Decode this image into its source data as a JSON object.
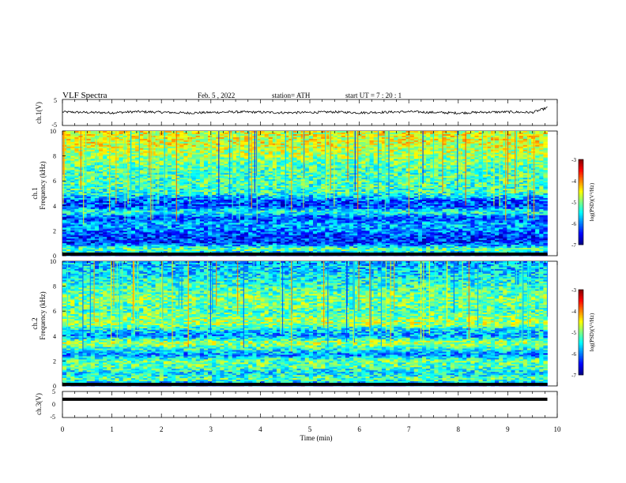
{
  "header": {
    "title": "VLF  Spectra",
    "date": "Feb. 5  , 2022",
    "station": "station= ATH",
    "start_ut": "start  UT  =   7  : 20 : 1"
  },
  "chart_data": [
    {
      "type": "line",
      "panel": "ch1-waveform",
      "ylabel": "ch.1(V)",
      "ylim": [
        -5,
        5
      ],
      "yticks": [
        "5",
        "-5"
      ],
      "xlim": [
        0,
        10
      ],
      "series": [
        {
          "values": [
            0.2,
            0.0,
            -0.1,
            0.3,
            0.1,
            -0.2,
            0.0,
            0.2,
            0.1,
            -0.1,
            0.0,
            0.2,
            -0.1,
            0.1,
            0.3,
            0.0,
            -0.2,
            0.1,
            0.2,
            0.0,
            1.8
          ]
        }
      ],
      "x": [
        0,
        0.5,
        1,
        1.5,
        2,
        2.5,
        3,
        3.5,
        4,
        4.5,
        5,
        5.5,
        6,
        6.5,
        7,
        7.5,
        8,
        8.5,
        9,
        9.5,
        9.8
      ]
    },
    {
      "type": "heatmap",
      "panel": "ch1-spectrogram",
      "ylabel_lines": [
        "ch.1",
        "Frequency  (kHz)"
      ],
      "ylim": [
        0,
        10
      ],
      "yticks": [
        "0",
        "2",
        "4",
        "6",
        "8",
        "10"
      ],
      "xlim": [
        0,
        9.8
      ],
      "colorbar": {
        "label": "log(PSD)(V²/Hz)",
        "range": [
          -7,
          -3
        ],
        "ticks": [
          "-3",
          "-4",
          "-5",
          "-6",
          "-7"
        ]
      },
      "profile_khz": [
        0,
        0.5,
        1,
        1.5,
        2,
        2.5,
        3,
        3.5,
        4,
        4.5,
        5,
        6,
        7,
        8,
        9,
        10
      ],
      "profile_log_psd": [
        -6.6,
        -5.0,
        -6.3,
        -6.3,
        -6.0,
        -5.8,
        -6.3,
        -5.3,
        -6.3,
        -6.1,
        -5.3,
        -5.2,
        -5.2,
        -4.9,
        -4.6,
        -4.6
      ]
    },
    {
      "type": "heatmap",
      "panel": "ch2-spectrogram",
      "ylabel_lines": [
        "ch.2",
        "Frequency  (kHz)"
      ],
      "ylim": [
        0,
        10
      ],
      "yticks": [
        "0",
        "2",
        "4",
        "6",
        "8",
        "10"
      ],
      "xlim": [
        0,
        9.8
      ],
      "colorbar": {
        "label": "log(PSD)(V²/Hz)",
        "range": [
          -7,
          -3
        ],
        "ticks": [
          "-3",
          "-4",
          "-5",
          "-6",
          "-7"
        ]
      },
      "profile_khz": [
        0,
        0.5,
        1,
        1.5,
        2,
        2.5,
        3,
        3.5,
        4,
        4.5,
        5,
        6,
        7,
        8,
        9,
        10
      ],
      "profile_log_psd": [
        -6.6,
        -5.1,
        -5.6,
        -5.2,
        -5.1,
        -6.0,
        -5.3,
        -4.8,
        -5.9,
        -5.6,
        -4.8,
        -5.2,
        -5.0,
        -5.3,
        -5.6,
        -5.8
      ]
    },
    {
      "type": "line",
      "panel": "ch3-waveform",
      "ylabel": "ch.3(V)",
      "ylim": [
        -5,
        5
      ],
      "yticks": [
        "5",
        "0",
        "-5"
      ],
      "xlim": [
        0,
        10
      ],
      "xlabel": "Time  (min)",
      "xticks": [
        "0",
        "1",
        "2",
        "3",
        "4",
        "5",
        "6",
        "7",
        "8",
        "9",
        "10"
      ],
      "series": [
        {
          "values": [
            2.0,
            2.0
          ]
        }
      ],
      "x": [
        0,
        9.8
      ]
    }
  ]
}
